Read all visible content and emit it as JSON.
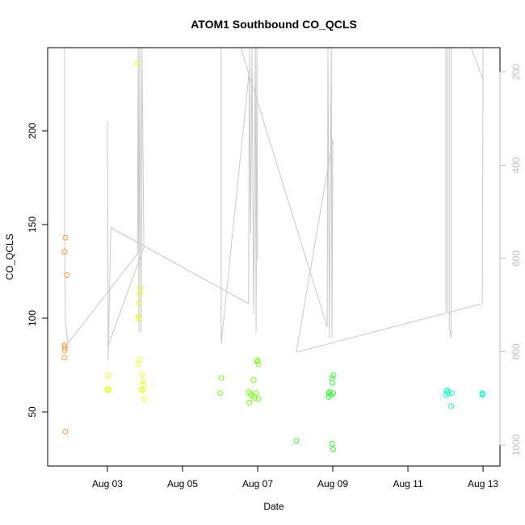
{
  "chart_data": {
    "type": "scatter",
    "title": "ATOM1 Southbound CO_QCLS",
    "xlabel": "Date",
    "ylabel": "CO_QCLS",
    "xlim": [
      "08-01T09:50",
      "08-13T10:48"
    ],
    "ylim": [
      21.1,
      244.4
    ],
    "x_ticks": [
      {
        "at": "08-03T00:00",
        "label": "Aug 03"
      },
      {
        "at": "08-05T00:00",
        "label": "Aug 05"
      },
      {
        "at": "08-07T00:00",
        "label": "Aug 07"
      },
      {
        "at": "08-09T00:00",
        "label": "Aug 09"
      },
      {
        "at": "08-11T00:00",
        "label": "Aug 11"
      },
      {
        "at": "08-13T00:00",
        "label": "Aug 13"
      }
    ],
    "y_ticks": [
      50,
      100,
      150,
      200
    ],
    "right_axis": {
      "ylim": [
        1045,
        148
      ],
      "inverted": true,
      "ticks": [
        200,
        400,
        600,
        800,
        1000
      ],
      "color": "#bdbdbd"
    },
    "grid": false,
    "points": [
      {
        "color": "#ff9933",
        "x": [
          "08-01T21:07",
          "08-01T20:38",
          "08-01T22:05",
          "08-01T20:38",
          "08-01T20:50",
          "08-01T20:38",
          "08-01T20:38",
          "08-01T21:07"
        ],
        "y": [
          143,
          135.5,
          123,
          85.5,
          84.5,
          83,
          79,
          39.5
        ]
      },
      {
        "color": "#e8ff1a",
        "x": [
          "08-03T00:43",
          "08-03T00:00",
          "08-03T00:29",
          "08-03T01:12"
        ],
        "y": [
          69.5,
          62,
          61.5,
          62
        ]
      },
      {
        "color": "#e8ff1a",
        "x": [
          "08-03T19:12",
          "08-03T21:07",
          "08-03T20:38",
          "08-03T20:10",
          "08-03T19:41",
          "08-03T20:10",
          "08-03T20:38",
          "08-03T19:41",
          "08-03T22:05",
          "08-03T22:34",
          "08-03T23:02",
          "08-03T21:36",
          "08-03T22:48",
          "08-03T23:31"
        ],
        "y": [
          236,
          116,
          113,
          108,
          101,
          100,
          78,
          75.5,
          70,
          66.5,
          64.5,
          62,
          61.5,
          57
        ]
      },
      {
        "color": "#77ff1a",
        "x": [
          "08-06T00:43",
          "08-06T00:14"
        ],
        "y": [
          68,
          60
        ]
      },
      {
        "color": "#77ff1a",
        "x": [
          "08-06T23:31",
          "08-07T00:00",
          "08-07T00:29",
          "08-06T21:22",
          "08-06T18:14",
          "08-06T19:26",
          "08-06T20:24",
          "08-06T22:05",
          "08-06T23:02",
          "08-07T00:29",
          "08-06T18:43"
        ],
        "y": [
          77,
          77.5,
          75.5,
          67,
          60.5,
          59.5,
          58.5,
          57.5,
          60,
          57,
          55
        ]
      },
      {
        "color": "#33ff33",
        "x": [
          "08-08T00:43"
        ],
        "y": [
          34.5
        ]
      },
      {
        "color": "#33ff33",
        "x": [
          "08-09T00:29",
          "08-08T23:31",
          "08-08T23:45",
          "08-08T21:50",
          "08-08T21:36",
          "08-09T00:14",
          "08-08T22:48",
          "08-08T21:22",
          "08-08T23:31",
          "08-09T00:14"
        ],
        "y": [
          69.5,
          68,
          65.5,
          60.5,
          60,
          60,
          59,
          58,
          33,
          30
        ]
      },
      {
        "color": "#1affc6",
        "x": [
          "08-12T00:43",
          "08-12T01:12",
          "08-12T01:41",
          "08-12T00:14",
          "08-12T04:05",
          "08-12T03:36"
        ],
        "y": [
          61,
          61.5,
          60,
          59,
          60,
          53
        ]
      },
      {
        "color": "#1affc6",
        "x": [
          "08-12T23:31",
          "08-12T23:45",
          "08-12T23:31"
        ],
        "y": [
          60,
          59.5,
          59
        ]
      }
    ],
    "pressure_line": {
      "color": "#c8c8c8",
      "segments": [
        {
          "x": [
            "08-01T20:38",
            "08-01T20:38",
            "08-01T21:07",
            "08-01T22:48",
            "08-03T19:12",
            "08-03T19:41",
            "08-03T20:10",
            "08-03T20:38",
            "08-03T21:36",
            "08-03T22:05",
            "08-03T23:17",
            "08-03T00:29",
            "08-03T00:00",
            "08-03T00:29",
            "08-03T02:10",
            "08-06T18:14",
            "08-06T18:43",
            "08-06T19:26",
            "08-06T20:24",
            "08-06T21:22",
            "08-06T22:34",
            "08-06T23:02",
            "08-06T23:31",
            "08-07T00:00"
          ],
          "y": [
            148,
            534,
            735,
            782,
            590,
            148,
            759,
            148,
            759,
            148,
            576,
            787,
            307,
            818,
            534,
            697,
            148,
            548,
            148,
            721,
            148,
            759,
            148,
            605
          ]
        },
        {
          "x": [
            "08-06T00:43",
            "08-06T00:43",
            "08-06T18:43"
          ],
          "y": [
            148,
            782,
            195
          ]
        },
        {
          "x": [
            "08-06T13:12",
            "08-08T20:24",
            "08-08T20:53",
            "08-08T21:50",
            "08-08T23:02",
            "08-08T23:31",
            "08-09T00:00",
            "08-08T00:43",
            "08-12T23:31",
            "08-13T00:00"
          ],
          "y": [
            148,
            747,
            148,
            771,
            148,
            771,
            344,
            801,
            697,
            148
          ]
        },
        {
          "x": [
            "08-12T16:19",
            "08-13T00:00"
          ],
          "y": [
            148,
            217
          ]
        },
        {
          "x": [
            "08-12T00:14",
            "08-12T00:14",
            "08-12T01:12",
            "08-12T01:12",
            "08-12T02:24",
            "08-12T02:24",
            "08-12T03:36",
            "08-12T03:36"
          ],
          "y": [
            148,
            713,
            713,
            148,
            148,
            747,
            771,
            148
          ]
        }
      ]
    }
  }
}
